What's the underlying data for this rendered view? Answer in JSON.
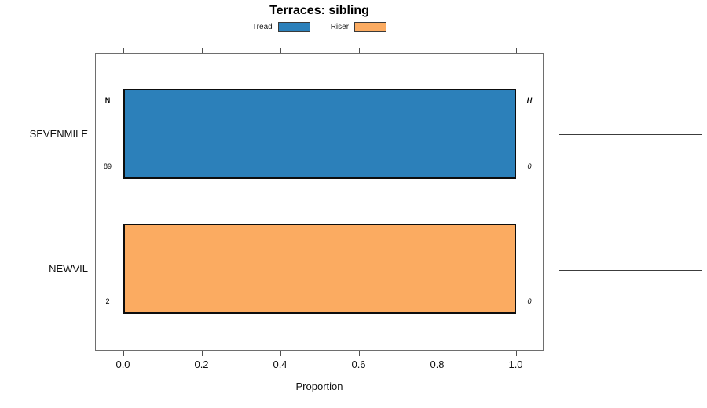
{
  "title": "Terraces: sibling",
  "xlabel": "Proportion",
  "legend": [
    {
      "label": "Tread",
      "color": "#2c80ba"
    },
    {
      "label": "Riser",
      "color": "#fbab61"
    }
  ],
  "chart_data": {
    "type": "bar",
    "orientation": "horizontal",
    "title": "Terraces: sibling",
    "xlabel": "Proportion",
    "xlim": [
      0.0,
      1.0
    ],
    "xticks": [
      0.0,
      0.2,
      0.4,
      0.6,
      0.8,
      1.0
    ],
    "xtick_labels": [
      "0.0",
      "0.2",
      "0.4",
      "0.6",
      "0.8",
      "1.0"
    ],
    "grid": false,
    "legend_position": "top",
    "left_header": "N",
    "right_header": "H",
    "rows": [
      {
        "category": "SEVENMILE",
        "series": "Tread",
        "value": 1.0,
        "n": 89,
        "h": 0,
        "color": "#2c80ba"
      },
      {
        "category": "NEWVIL",
        "series": "Riser",
        "value": 1.0,
        "n": 2,
        "h": 0,
        "color": "#fbab61"
      }
    ],
    "right_bracket_between_rows": true
  }
}
